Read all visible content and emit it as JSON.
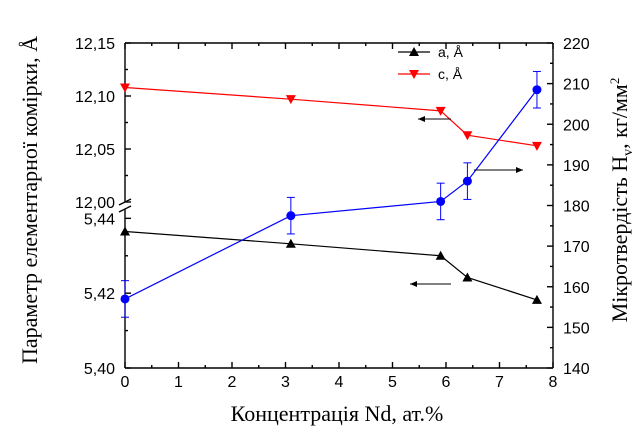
{
  "chart_data": {
    "type": "line",
    "xlabel": "Концентрація Nd, ат.%",
    "ylabel_left": "Параметр елементарної комірки, Å",
    "ylabel_right_parts": {
      "pre": "Мікротвердість H",
      "sub": "v",
      "mid": ", кг/мм",
      "sup": "2"
    },
    "xlim": [
      0,
      8
    ],
    "x_ticks": [
      "0",
      "1",
      "2",
      "3",
      "4",
      "5",
      "6",
      "7",
      "8"
    ],
    "left_axis_broken": true,
    "left_ticks_upper": [
      "12,15",
      "12,10",
      "12,05",
      "12,00"
    ],
    "left_ticks_lower": [
      "5,44",
      "5,42",
      "5,40"
    ],
    "left_ylim_upper": [
      12.0,
      12.15
    ],
    "left_ylim_lower": [
      5.4,
      5.4425
    ],
    "right_ylim": [
      140,
      220
    ],
    "right_ticks": [
      "140",
      "150",
      "160",
      "170",
      "180",
      "190",
      "200",
      "210",
      "220"
    ],
    "series": [
      {
        "name": "a, Å",
        "axis": "left-lower",
        "color": "#000000",
        "marker": "triangle-up",
        "x": [
          0,
          3.1,
          5.9,
          6.4,
          7.7
        ],
        "y": [
          5.4365,
          5.4332,
          5.43,
          5.4242,
          5.4182
        ]
      },
      {
        "name": "c, Å",
        "axis": "left-upper",
        "color": "#ff0000",
        "marker": "triangle-down",
        "x": [
          0,
          3.1,
          5.9,
          6.4,
          7.7
        ],
        "y": [
          12.108,
          12.097,
          12.086,
          12.063,
          12.053
        ]
      },
      {
        "axis": "right",
        "color": "#0000ff",
        "marker": "circle",
        "x": [
          0,
          3.1,
          5.9,
          6.4,
          7.7
        ],
        "y": [
          157,
          177.5,
          181,
          186,
          208.5
        ],
        "yerr": [
          4.5,
          4.5,
          4.5,
          4.5,
          4.5
        ]
      }
    ],
    "legend": {
      "placement": "top-center",
      "entries": [
        "a, Å",
        "c, Å"
      ]
    },
    "grid": false
  }
}
